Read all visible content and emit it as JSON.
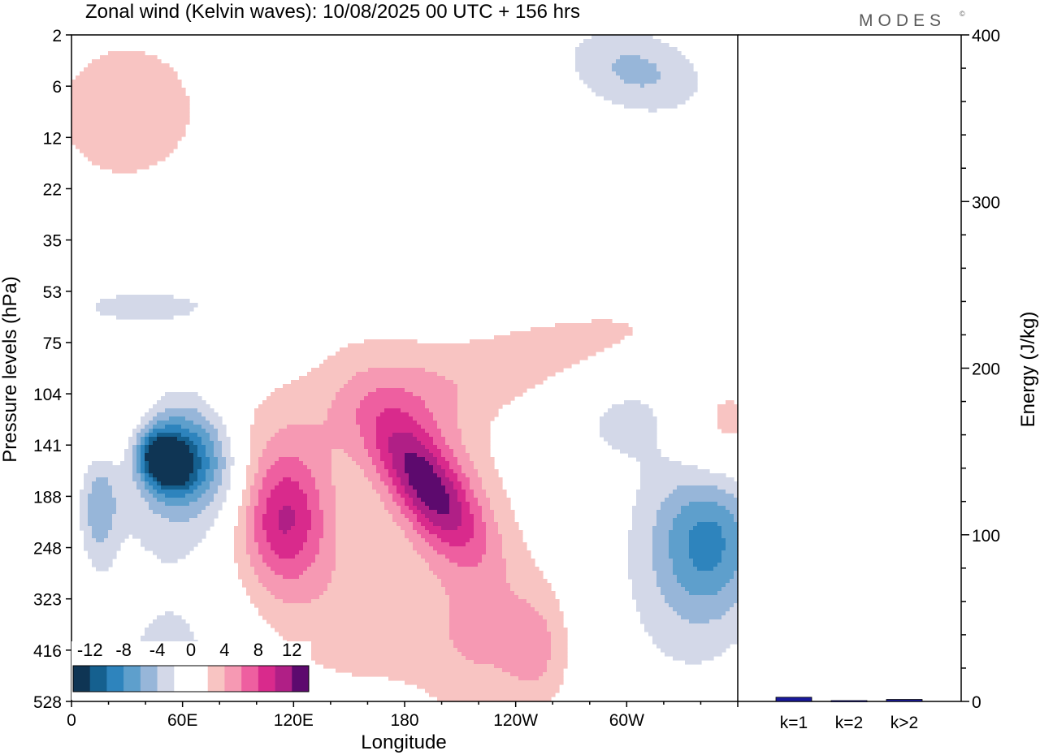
{
  "title": "Zonal wind (Kelvin waves):  10/08/2025  00 UTC  + 156 hrs",
  "brand": {
    "name": "MODES",
    "mark": "©"
  },
  "colors": {
    "neg": [
      "#0f3554",
      "#15608f",
      "#2e84bd",
      "#5e9fcc",
      "#97b6d9",
      "#d3d8e8"
    ],
    "zero": "#ffffff",
    "pos": [
      "#f8c4c2",
      "#f699b3",
      "#ee5fa0",
      "#d92a8c",
      "#b01f86",
      "#5d0a6e"
    ],
    "energy_bar": "#1a1a9c"
  },
  "chart_data": [
    {
      "type": "heatmap",
      "variable": "Zonal wind (Kelvin waves)",
      "xlabel": "Longitude",
      "ylabel": "Pressure levels (hPa)",
      "x_ticks": [
        "0",
        "60E",
        "120E",
        "180",
        "120W",
        "60W"
      ],
      "x_range_deg": [
        0,
        360
      ],
      "y_levels_hPa": [
        "2",
        "6",
        "12",
        "22",
        "35",
        "53",
        "75",
        "104",
        "141",
        "188",
        "248",
        "323",
        "416",
        "528"
      ],
      "colorbar": {
        "labels": [
          "-12",
          "-8",
          "-4",
          "0",
          "4",
          "8",
          "12"
        ],
        "levels": [
          -14,
          -12,
          -10,
          -8,
          -6,
          -4,
          -2,
          2,
          4,
          6,
          8,
          10,
          12,
          14
        ]
      },
      "features": [
        {
          "lon": 50,
          "level_index": 8.3,
          "value": -13.5,
          "sx": 12,
          "sy": 0.55,
          "rot": -30
        },
        {
          "lon": 65,
          "level_index": 8.1,
          "value": -7,
          "sx": 22,
          "sy": 1.05,
          "rot": -35
        },
        {
          "lon": 55,
          "level_index": 8.7,
          "value": -5,
          "sx": 34,
          "sy": 1.6,
          "rot": -28
        },
        {
          "lon": 15,
          "level_index": 9.2,
          "value": -5,
          "sx": 10,
          "sy": 1.1,
          "rot": 0
        },
        {
          "lon": 115,
          "level_index": 9.4,
          "value": 6.5,
          "sx": 22,
          "sy": 1.2,
          "rot": 0
        },
        {
          "lon": 112,
          "level_index": 9.6,
          "value": 4,
          "sx": 38,
          "sy": 2.4,
          "rot": 0
        },
        {
          "lon": 192,
          "level_index": 8.8,
          "value": 8.5,
          "sx": 17,
          "sy": 1.5,
          "rot": -35
        },
        {
          "lon": 195,
          "level_index": 8.6,
          "value": 5,
          "sx": 32,
          "sy": 2.6,
          "rot": -30
        },
        {
          "lon": 235,
          "level_index": 6.5,
          "value": 3,
          "sx": 130,
          "sy": 1.0,
          "rot": -15
        },
        {
          "lon": 252,
          "level_index": 12.0,
          "value": 3.5,
          "sx": 18,
          "sy": 1.2,
          "rot": 0
        },
        {
          "lon": 345,
          "level_index": 9.8,
          "value": -7,
          "sx": 28,
          "sy": 1.5,
          "rot": 0
        },
        {
          "lon": 330,
          "level_index": 10.5,
          "value": -2.5,
          "sx": 40,
          "sy": 2.6,
          "rot": 0
        },
        {
          "lon": 350,
          "level_index": 7.8,
          "value": 4,
          "sx": 28,
          "sy": 1.2,
          "rot": 0
        },
        {
          "lon": 305,
          "level_index": 0.7,
          "value": -4.5,
          "sx": 38,
          "sy": 0.8,
          "rot": 15
        },
        {
          "lon": 300,
          "level_index": 7.4,
          "value": -2.5,
          "sx": 40,
          "sy": 1.0,
          "rot": 0
        },
        {
          "lon": 30,
          "level_index": 1.5,
          "value": 3.5,
          "sx": 45,
          "sy": 1.6,
          "rot": 10
        },
        {
          "lon": 25,
          "level_index": 7.6,
          "value": 3.5,
          "sx": 28,
          "sy": 1.0,
          "rot": 0
        },
        {
          "lon": 40,
          "level_index": 5.3,
          "value": -2.5,
          "sx": 60,
          "sy": 0.5,
          "rot": 0
        },
        {
          "lon": 150,
          "level_index": 3.0,
          "value": -2,
          "sx": 60,
          "sy": 0.9,
          "rot": 0
        },
        {
          "lon": 60,
          "level_index": 12.0,
          "value": -2.5,
          "sx": 50,
          "sy": 1.6,
          "rot": 0
        },
        {
          "lon": 165,
          "level_index": 11.5,
          "value": 2.5,
          "sx": 50,
          "sy": 1.8,
          "rot": 0
        },
        {
          "lon": 220,
          "level_index": 12.0,
          "value": 3,
          "sx": 30,
          "sy": 1.4,
          "rot": 0
        }
      ]
    },
    {
      "type": "bar",
      "ylabel": "Energy (J/kg)",
      "categories": [
        "k=1",
        "k=2",
        "k>2"
      ],
      "values": [
        2.5,
        0.5,
        1.2
      ],
      "ylim": [
        0,
        400
      ],
      "y_ticks": [
        "0",
        "100",
        "200",
        "300",
        "400"
      ]
    }
  ]
}
